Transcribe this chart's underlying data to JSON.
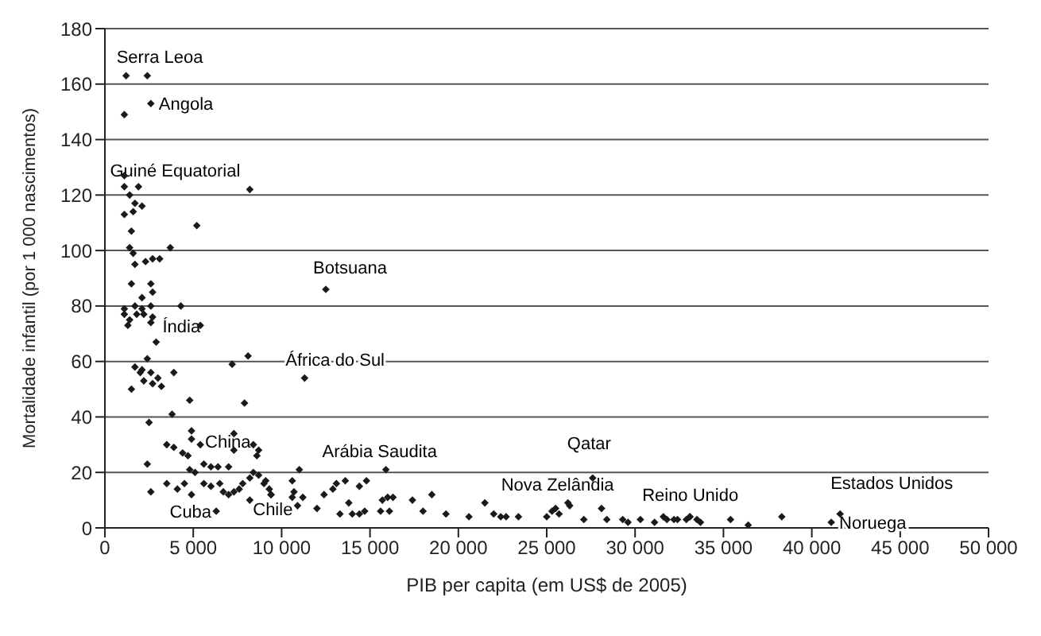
{
  "chart_data": {
    "type": "scatter",
    "xlabel": "PIB per capita (em US$ de 2005)",
    "ylabel": "Mortalidade infantil (por 1 000 nascimentos)",
    "xlim": [
      0,
      50000
    ],
    "xticks": [
      0,
      {
        "value": 5000,
        "label": "5 000"
      },
      {
        "value": 10000,
        "label": "10 000"
      },
      {
        "value": 15000,
        "label": "15 000"
      },
      {
        "value": 20000,
        "label": "20 000"
      },
      {
        "value": 25000,
        "label": "25 000"
      },
      {
        "value": 30000,
        "label": "30 000"
      },
      {
        "value": 35000,
        "label": "35 000"
      },
      {
        "value": 40000,
        "label": "40 000"
      },
      {
        "value": 45000,
        "label": "45 000"
      },
      {
        "value": 50000,
        "label": "50 000"
      }
    ],
    "ylim": [
      0,
      180
    ],
    "yticks": [
      0,
      20,
      40,
      60,
      80,
      100,
      120,
      140,
      160,
      180
    ],
    "grid": "y",
    "marker": "diamond",
    "series": [
      {
        "color": "#1a1a1a",
        "x": [
          1200,
          2400,
          2600,
          1100,
          8200,
          12500,
          11300,
          2900,
          5400,
          6300,
          10900,
          15900,
          27600,
          26200,
          33100,
          41600,
          41100,
          1100,
          1100,
          1900,
          1400,
          1700,
          2100,
          1100,
          1600,
          1500,
          5200,
          1400,
          1600,
          3700,
          1700,
          2300,
          2700,
          3100,
          1500,
          2600,
          2700,
          2100,
          1100,
          1700,
          2100,
          2600,
          1100,
          1400,
          1800,
          2200,
          2700,
          1300,
          2600,
          4300,
          5400,
          2400,
          7200,
          8100,
          1700,
          2100,
          2000,
          2600,
          3000,
          3900,
          2200,
          2700,
          3200,
          1500,
          4800,
          7900,
          3800,
          2500,
          4900,
          4900,
          3500,
          3900,
          4400,
          4700,
          7300,
          7300,
          8400,
          8700,
          8600,
          2400,
          4800,
          5100,
          5600,
          6000,
          6400,
          7000,
          2600,
          3500,
          4100,
          4500,
          4900,
          5600,
          6000,
          6500,
          6700,
          7000,
          7300,
          7600,
          7800,
          8200,
          8400,
          8700,
          9000,
          9300,
          9400,
          8200,
          11000,
          9100,
          9400,
          10600,
          10700,
          11200,
          10600,
          12000,
          12400,
          12900,
          13100,
          13600,
          14400,
          14800,
          13800,
          14000,
          13300,
          14400,
          14700,
          15700,
          16000,
          16300,
          15600,
          16100,
          17400,
          18500,
          18000,
          19300,
          20600,
          21500,
          22000,
          22400,
          22700,
          23400,
          25000,
          25300,
          25700,
          25500,
          26300,
          27100,
          28100,
          28400,
          29300,
          29600,
          30300,
          31100,
          31600,
          31800,
          32200,
          32400,
          32900,
          33100,
          33500,
          33700,
          35400,
          36400,
          38300
        ],
        "values": [
          163,
          163,
          153,
          149,
          122,
          86,
          54,
          67,
          30,
          6,
          8,
          21,
          18,
          9,
          4,
          5,
          2,
          127,
          123,
          123,
          120,
          117,
          116,
          113,
          114,
          107,
          109,
          101,
          99,
          101,
          95,
          96,
          97,
          97,
          88,
          88,
          85,
          83,
          79,
          80,
          79,
          80,
          77,
          75,
          77,
          77,
          76,
          73,
          74,
          80,
          73,
          61,
          59,
          62,
          58,
          57,
          56,
          56,
          54,
          56,
          53,
          52,
          51,
          50,
          46,
          45,
          41,
          38,
          35,
          32,
          30,
          29,
          27,
          26,
          34,
          28,
          30,
          28,
          26,
          23,
          21,
          20,
          23,
          22,
          22,
          22,
          13,
          16,
          14,
          16,
          12,
          16,
          15,
          16,
          13,
          12,
          13,
          14,
          16,
          18,
          20,
          19,
          16,
          14,
          12,
          10,
          21,
          17,
          12,
          17,
          13,
          11,
          11,
          7,
          12,
          14,
          16,
          17,
          15,
          17,
          9,
          5,
          5,
          5,
          6,
          10,
          11,
          11,
          6,
          6,
          10,
          12,
          6,
          5,
          4,
          9,
          5,
          4,
          4,
          4,
          4,
          6,
          5,
          7,
          8,
          3,
          7,
          3,
          3,
          2,
          3,
          2,
          4,
          3,
          3,
          3,
          3,
          4,
          3,
          2,
          3,
          1,
          4
        ]
      }
    ],
    "annotations": [
      {
        "text": "Serra Leoa",
        "x": 1200,
        "y": 163
      },
      {
        "text": "Angola",
        "x": 2600,
        "y": 153
      },
      {
        "text": "Guiné Equatorial",
        "x": 8200,
        "y": 122
      },
      {
        "text": "Botsuana",
        "x": 12500,
        "y": 86
      },
      {
        "text": "África do Sul",
        "x": 11300,
        "y": 54
      },
      {
        "text": "Índia",
        "x": 2900,
        "y": 67
      },
      {
        "text": "China",
        "x": 5400,
        "y": 30
      },
      {
        "text": "Cuba",
        "x": 6300,
        "y": 6
      },
      {
        "text": "Chile",
        "x": 10900,
        "y": 8
      },
      {
        "text": "Arábia Saudita",
        "x": 15900,
        "y": 21
      },
      {
        "text": "Qatar",
        "x": 27600,
        "y": 18
      },
      {
        "text": "Nova Zelândia",
        "x": 26200,
        "y": 9
      },
      {
        "text": "Reino Unido",
        "x": 33100,
        "y": 4
      },
      {
        "text": "Estados Unidos",
        "x": 41600,
        "y": 5
      },
      {
        "text": "Noruega",
        "x": 41100,
        "y": 2
      }
    ]
  }
}
